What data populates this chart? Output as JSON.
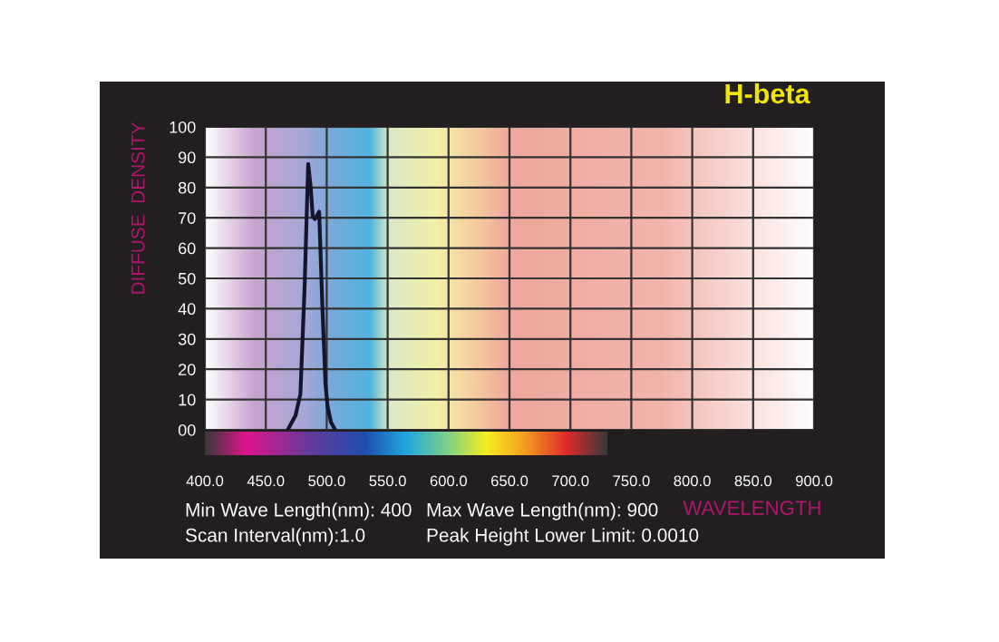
{
  "chart_data": {
    "type": "line",
    "title": "H-beta",
    "xlabel": "WAVELENGTH",
    "ylabel": "DIFFUSE  DENSITY",
    "x": [
      468,
      474.4,
      478.4,
      481.8,
      484.8,
      486.9,
      488.5,
      490.4,
      493.8,
      496.5,
      499,
      500.7,
      503.5,
      507
    ],
    "series": [
      {
        "color": "#14142a",
        "values": [
          0,
          4.7,
          11.8,
          46.5,
          87.8,
          80,
          70.5,
          69.6,
          72,
          40,
          15,
          7.8,
          2.5,
          0
        ]
      }
    ],
    "xlim": [
      400,
      900
    ],
    "ylim": [
      0,
      100
    ],
    "xticks": [
      {
        "value": 400,
        "label": "400.0"
      },
      {
        "value": 450,
        "label": "450.0"
      },
      {
        "value": 500,
        "label": "500.0"
      },
      {
        "value": 550,
        "label": "550.0"
      },
      {
        "value": 600,
        "label": "600.0"
      },
      {
        "value": 650,
        "label": "650.0"
      },
      {
        "value": 700,
        "label": "700.0"
      },
      {
        "value": 750,
        "label": "750.0"
      },
      {
        "value": 800,
        "label": "800.0"
      },
      {
        "value": 850,
        "label": "850.0"
      },
      {
        "value": 900,
        "label": "900.0"
      }
    ],
    "yticks": [
      {
        "value": 0,
        "label": "00"
      },
      10,
      20,
      30,
      40,
      50,
      60,
      70,
      80,
      90,
      100
    ],
    "grid": true,
    "annotations": [
      "Min Wave Length(nm): 400",
      "Max Wave Length(nm): 900",
      "Scan Interval(nm):1.0",
      "Peak Height Lower Limit: 0.0010"
    ]
  }
}
